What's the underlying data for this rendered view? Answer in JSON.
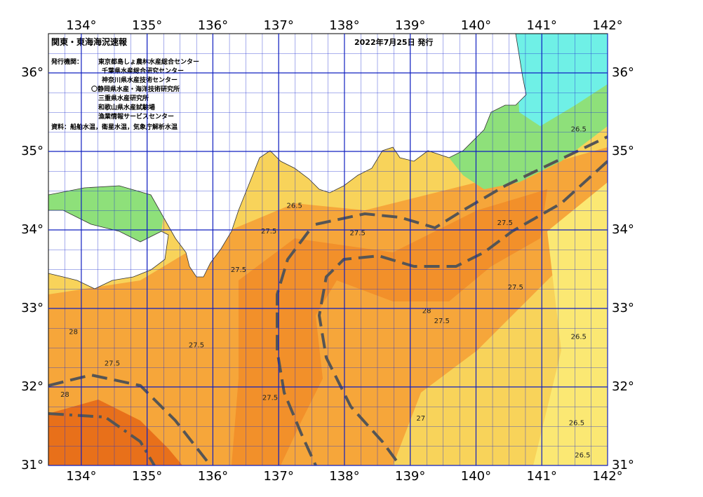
{
  "header": {
    "title": "関東・東海海況速報",
    "date": "2022年7月25日 発行"
  },
  "issuers": {
    "label": "発行機関：",
    "agencies": [
      "東京都島しょ農林水産総合センター",
      "千葉県水産総合研究センター",
      "神奈川県水産技術センター",
      "〇静岡県水産・海洋技術研究所",
      "三重県水産研究所",
      "和歌山県水産試験場",
      "漁業情報サービスセンター"
    ]
  },
  "source": "資料：船舶水温，衛星水温，気象庁解析水温",
  "map": {
    "lonlim": [
      133.5,
      142
    ],
    "latlim": [
      31,
      36.5
    ],
    "lon_ticks": [
      {
        "value": 134,
        "label": "134°"
      },
      {
        "value": 135,
        "label": "135°"
      },
      {
        "value": 136,
        "label": "136°"
      },
      {
        "value": 137,
        "label": "137°"
      },
      {
        "value": 138,
        "label": "138°"
      },
      {
        "value": 139,
        "label": "139°"
      },
      {
        "value": 140,
        "label": "140°"
      },
      {
        "value": 141,
        "label": "141°"
      },
      {
        "value": 142,
        "label": "142°"
      }
    ],
    "lat_ticks": [
      {
        "value": 31,
        "label": "31°"
      },
      {
        "value": 32,
        "label": "32°"
      },
      {
        "value": 33,
        "label": "33°"
      },
      {
        "value": 34,
        "label": "34°"
      },
      {
        "value": 35,
        "label": "35°"
      },
      {
        "value": 36,
        "label": "36°"
      }
    ],
    "contour_labels": [
      {
        "lon": 137.24,
        "lat": 34.31,
        "value": 26.5
      },
      {
        "lon": 136.85,
        "lat": 33.98,
        "value": 27.5
      },
      {
        "lon": 136.39,
        "lat": 33.49,
        "value": 27.5
      },
      {
        "lon": 138.2,
        "lat": 33.96,
        "value": 27.5
      },
      {
        "lon": 140.44,
        "lat": 34.09,
        "value": 27.5
      },
      {
        "lon": 140.6,
        "lat": 33.27,
        "value": 27.5
      },
      {
        "lon": 139.48,
        "lat": 32.84,
        "value": 27.5
      },
      {
        "lon": 135.75,
        "lat": 32.53,
        "value": 27.5
      },
      {
        "lon": 134.47,
        "lat": 32.3,
        "value": 27.5
      },
      {
        "lon": 136.87,
        "lat": 31.86,
        "value": 27.5
      },
      {
        "lon": 141.56,
        "lat": 35.28,
        "value": 26.5
      },
      {
        "lon": 141.56,
        "lat": 32.64,
        "value": 26.5
      },
      {
        "lon": 141.53,
        "lat": 31.54,
        "value": 26.5
      },
      {
        "lon": 141.62,
        "lat": 31.13,
        "value": 26.5
      },
      {
        "lon": 133.75,
        "lat": 31.9,
        "value": 28
      },
      {
        "lon": 139.16,
        "lat": 31.6,
        "value": 27
      },
      {
        "lon": 139.25,
        "lat": 32.97,
        "value": 28
      },
      {
        "lon": 133.88,
        "lat": 32.7,
        "value": 28
      }
    ]
  }
}
